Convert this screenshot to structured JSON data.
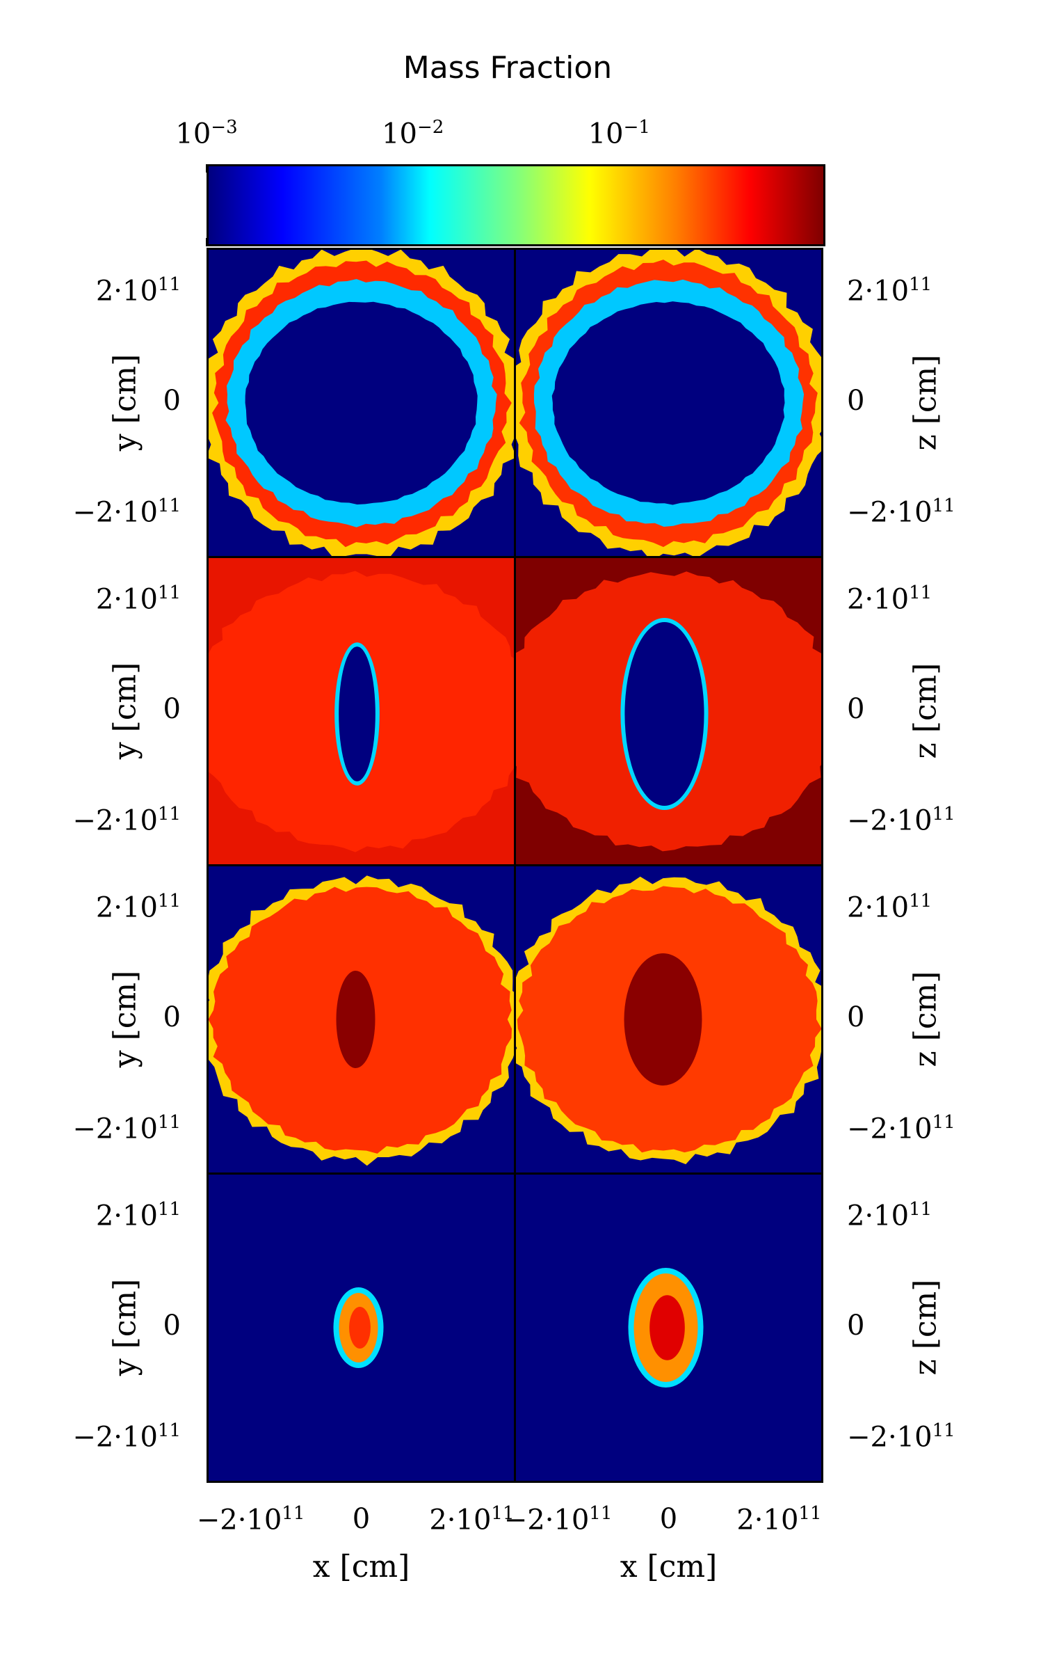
{
  "figure": {
    "colorbar_title": "Mass Fraction"
  },
  "chart_data": {
    "type": "heatmap",
    "colorbar": {
      "label": "Mass Fraction",
      "scale": "log",
      "range": [
        0.001,
        1.0
      ],
      "ticks": [
        {
          "value": 0.001,
          "base": "10",
          "exp": "−3"
        },
        {
          "value": 0.01,
          "base": "10",
          "exp": "−2"
        },
        {
          "value": 0.1,
          "base": "10",
          "exp": "−1"
        }
      ],
      "colormap": "jet"
    },
    "axes": {
      "left_column": {
        "xlabel": "x  [cm]",
        "ylabel": "y  [cm]"
      },
      "right_column": {
        "xlabel": "x  [cm]",
        "ylabel": "z  [cm]"
      },
      "range": [
        -280000000000.0,
        280000000000.0
      ],
      "tick_values": [
        -200000000000.0,
        0,
        200000000000.0
      ],
      "tick_labels": [
        {
          "pre": "−2·10",
          "exp": "11"
        },
        {
          "pre": "0",
          "exp": ""
        },
        {
          "pre": "2·10",
          "exp": "11"
        }
      ]
    },
    "panels": [
      {
        "row": 1,
        "col": "left",
        "plane": "x-y",
        "background": "#00007f",
        "fill": "#ff2a00"
      },
      {
        "row": 1,
        "col": "right",
        "plane": "x-z",
        "background": "#00007f",
        "fill": "#ff3200"
      },
      {
        "row": 2,
        "col": "left",
        "plane": "x-y",
        "background": "#e81500",
        "fill": "#ff2500"
      },
      {
        "row": 2,
        "col": "right",
        "plane": "x-z",
        "background": "#7f0000",
        "fill": "#f02000"
      },
      {
        "row": 3,
        "col": "left",
        "plane": "x-y",
        "background": "#00007f",
        "fill": "#ff3000"
      },
      {
        "row": 3,
        "col": "right",
        "plane": "x-z",
        "background": "#00007f",
        "fill": "#ff3a00"
      },
      {
        "row": 4,
        "col": "left",
        "plane": "x-y",
        "background": "#00007f",
        "fill": "#ff3000"
      },
      {
        "row": 4,
        "col": "right",
        "plane": "x-z",
        "background": "#00007f",
        "fill": "#e00000"
      }
    ]
  }
}
